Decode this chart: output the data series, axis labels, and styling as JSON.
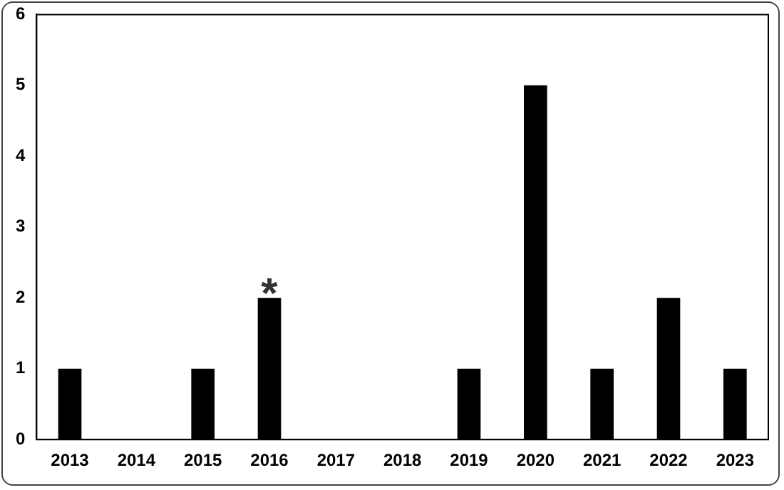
{
  "chart_data": {
    "type": "bar",
    "categories": [
      "2013",
      "2014",
      "2015",
      "2016",
      "2017",
      "2018",
      "2019",
      "2020",
      "2021",
      "2022",
      "2023"
    ],
    "values": [
      1,
      0,
      1,
      2,
      0,
      0,
      1,
      5,
      1,
      2,
      1
    ],
    "color": "#000000",
    "ylim": [
      0,
      6
    ],
    "yticks": [
      0,
      1,
      2,
      3,
      4,
      5,
      6
    ],
    "grid": false,
    "legend": false,
    "annotations": [
      {
        "text": "*",
        "x": "2016",
        "y": 2
      }
    ]
  }
}
